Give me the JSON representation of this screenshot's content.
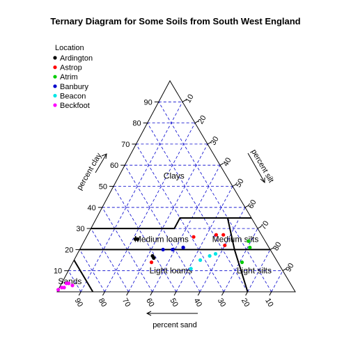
{
  "chart_data": {
    "type": "scatter",
    "subtype": "ternary",
    "title": "Ternary Diagram for Some Soils from South West England",
    "axes": {
      "clay": {
        "label": "percent clay",
        "ticks": [
          10,
          20,
          30,
          40,
          50,
          60,
          70,
          80,
          90
        ]
      },
      "silt": {
        "label": "percent silt",
        "ticks": [
          10,
          20,
          30,
          40,
          50,
          60,
          70,
          80,
          90
        ]
      },
      "sand": {
        "label": "percent sand",
        "ticks": [
          90,
          80,
          70,
          60,
          50,
          40,
          30,
          20,
          10
        ]
      }
    },
    "grid": true,
    "grid_color": "#0000cc",
    "legend": {
      "title": "Location",
      "placement": "top-left",
      "entries": [
        {
          "name": "Ardington",
          "color": "#000000"
        },
        {
          "name": "Astrop",
          "color": "#ff0000"
        },
        {
          "name": "Atrim",
          "color": "#00cc00"
        },
        {
          "name": "Banbury",
          "color": "#0000cc"
        },
        {
          "name": "Beacon",
          "color": "#00e5e5"
        },
        {
          "name": "Beckfoot",
          "color": "#ff00ff"
        }
      ]
    },
    "regions": [
      "Clays",
      "Medium loams",
      "Medium silts",
      "Light loams",
      "Light silts",
      "Sands"
    ],
    "series": [
      {
        "name": "Ardington",
        "color": "#000000",
        "points": [
          {
            "clay": 25,
            "silt": 21
          },
          {
            "clay": 25,
            "silt": 22
          },
          {
            "clay": 17,
            "silt": 32
          },
          {
            "clay": 16,
            "silt": 33
          }
        ]
      },
      {
        "name": "Astrop",
        "color": "#ff0000",
        "points": [
          {
            "clay": 26,
            "silt": 45
          },
          {
            "clay": 27,
            "silt": 54
          },
          {
            "clay": 27,
            "silt": 57
          },
          {
            "clay": 22,
            "silt": 60
          },
          {
            "clay": 14,
            "silt": 33
          }
        ]
      },
      {
        "name": "Atrim",
        "color": "#00cc00",
        "points": [
          {
            "clay": 24,
            "silt": 69
          },
          {
            "clay": 21,
            "silt": 71
          },
          {
            "clay": 14,
            "silt": 71
          }
        ]
      },
      {
        "name": "Banbury",
        "color": "#0000cc",
        "points": [
          {
            "clay": 20,
            "silt": 35
          },
          {
            "clay": 20,
            "silt": 39
          },
          {
            "clay": 21,
            "silt": 43
          },
          {
            "clay": 21,
            "silt": 43
          }
        ]
      },
      {
        "name": "Beacon",
        "color": "#00e5e5",
        "points": [
          {
            "clay": 15,
            "silt": 53
          },
          {
            "clay": 17,
            "silt": 56
          },
          {
            "clay": 18,
            "silt": 58
          },
          {
            "clay": 11,
            "silt": 51
          }
        ]
      },
      {
        "name": "Beckfoot",
        "color": "#ff00ff",
        "points": [
          {
            "clay": 4,
            "silt": 2
          },
          {
            "clay": 4,
            "silt": 3
          },
          {
            "clay": 3,
            "silt": 5
          },
          {
            "clay": 2,
            "silt": 1
          },
          {
            "clay": 2,
            "silt": 2
          },
          {
            "clay": 1,
            "silt": 0
          }
        ]
      }
    ]
  }
}
